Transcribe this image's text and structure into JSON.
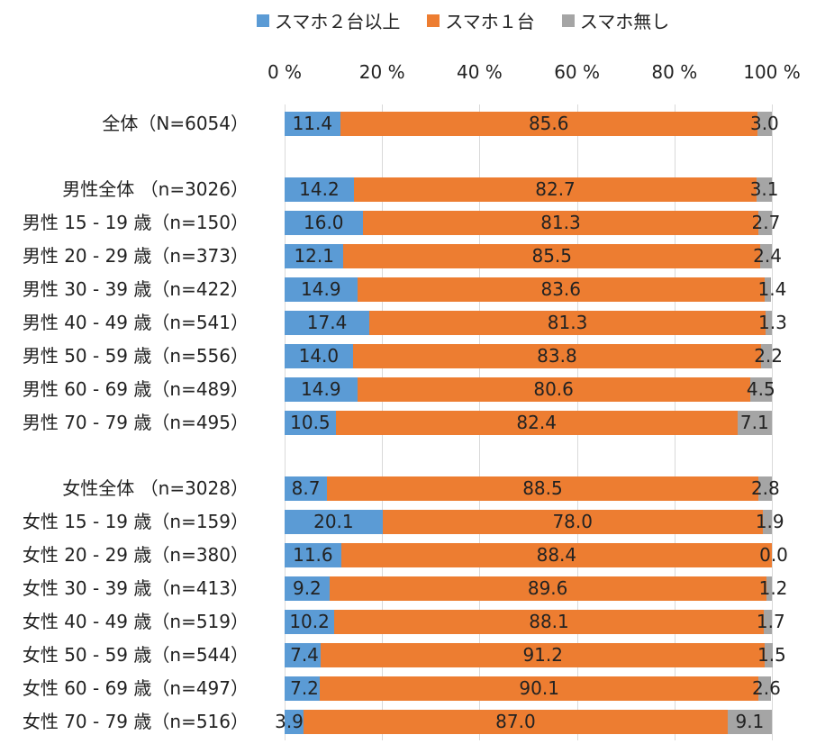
{
  "legend": [
    {
      "label": "スマホ２台以上",
      "color": "#5b9bd5"
    },
    {
      "label": "スマホ１台",
      "color": "#ed7d31"
    },
    {
      "label": "スマホ無し",
      "color": "#a5a5a5"
    }
  ],
  "chart_data": {
    "type": "bar",
    "orientation": "horizontal-stacked-100",
    "xlim": [
      0,
      100
    ],
    "x_ticks": [
      "0 %",
      "20 %",
      "40 %",
      "60 %",
      "80 %",
      "100 %"
    ],
    "grid": true,
    "legend_position": "top",
    "series": [
      {
        "name": "スマホ２台以上",
        "color": "#5b9bd5",
        "values": [
          11.4,
          14.2,
          16.0,
          12.1,
          14.9,
          17.4,
          14.0,
          14.9,
          10.5,
          8.7,
          20.1,
          11.6,
          9.2,
          10.2,
          7.4,
          7.2,
          3.9
        ],
        "labels": [
          "11.4",
          "14.2",
          "16.0",
          "12.1",
          "14.9",
          "17.4",
          "14.0",
          "14.9",
          "10.5",
          "8.7",
          "20.1",
          "11.6",
          "9.2",
          "10.2",
          "7.4",
          "7.2",
          "3.9"
        ]
      },
      {
        "name": "スマホ１台",
        "color": "#ed7d31",
        "values": [
          85.6,
          82.7,
          81.3,
          85.5,
          83.6,
          81.3,
          83.8,
          80.6,
          82.4,
          88.5,
          78.0,
          88.4,
          89.6,
          88.1,
          91.2,
          90.1,
          87.0
        ],
        "labels": [
          "85.6",
          "82.7",
          "81.3",
          "85.5",
          "83.6",
          "81.3",
          "83.8",
          "80.6",
          "82.4",
          "88.5",
          "78.0",
          "88.4",
          "89.6",
          "88.1",
          "91.2",
          "90.1",
          "87.0"
        ]
      },
      {
        "name": "スマホ無し",
        "color": "#a5a5a5",
        "values": [
          3.0,
          3.1,
          2.7,
          2.4,
          1.4,
          1.3,
          2.2,
          4.5,
          7.1,
          2.8,
          1.9,
          0.0,
          1.2,
          1.7,
          1.5,
          2.6,
          9.1
        ],
        "labels": [
          "3.0",
          "3.1",
          "2.7",
          "2.4",
          "1.4",
          "1.3",
          "2.2",
          "4.5",
          "7.1",
          "2.8",
          "1.9",
          "0.0",
          "1.2",
          "1.7",
          "1.5",
          "2.6",
          "9.1"
        ]
      }
    ],
    "categories": [
      "全体（N=6054）",
      "男性全体 （n=3026）",
      "男性 15 - 19 歳（n=150）",
      "男性 20 - 29 歳（n=373）",
      "男性 30 - 39 歳（n=422）",
      "男性 40 - 49 歳（n=541）",
      "男性 50 - 59 歳（n=556）",
      "男性 60 - 69 歳（n=489）",
      "男性 70 - 79 歳（n=495）",
      "女性全体 （n=3028）",
      "女性 15 - 19 歳（n=159）",
      "女性 20 - 29 歳（n=380）",
      "女性 30 - 39 歳（n=413）",
      "女性 40 - 49 歳（n=519）",
      "女性 50 - 59 歳（n=544）",
      "女性 60 - 69 歳（n=497）",
      "女性 70 - 79 歳（n=516）"
    ]
  }
}
